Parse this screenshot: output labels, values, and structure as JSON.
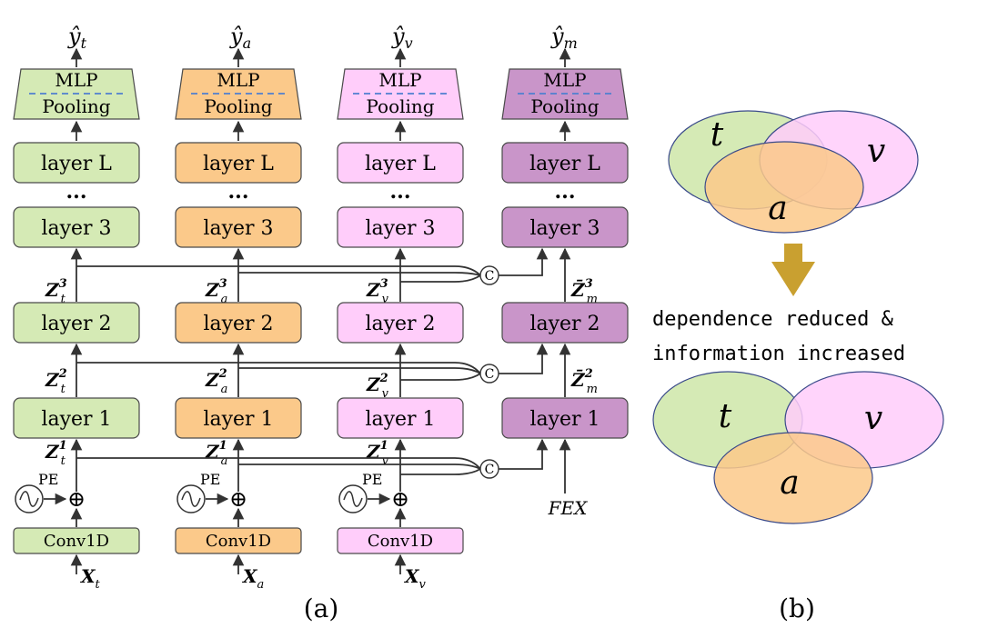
{
  "colors": {
    "text": "#d5eab5",
    "audio": "#fbc98a",
    "visual": "#ffcdfa",
    "multimodal": "#c995c9",
    "arrow_down": "#c9a030",
    "dashed": "#4f7fd0",
    "overlap_tv": "#cfb0b0",
    "overlap_tva": "#f07f80"
  },
  "panel_a": {
    "caption": "(a)",
    "columns": [
      {
        "id": "t",
        "output": "ŷ",
        "output_sub": "t",
        "mlp": "MLP",
        "pooling": "Pooling",
        "layers": [
          "layer L",
          "layer 3",
          "layer 2",
          "layer 1"
        ],
        "ellipsis": "...",
        "feat3": "Z",
        "feat3_sub": "t",
        "feat3_sup": "3",
        "feat2": "Z",
        "feat2_sub": "t",
        "feat2_sup": "2",
        "feat1": "Z",
        "feat1_sub": "t",
        "feat1_sup": "1",
        "pe": "PE",
        "plus": "⊕",
        "conv": "Conv1D",
        "input": "X",
        "input_sub": "t"
      },
      {
        "id": "a",
        "output": "ŷ",
        "output_sub": "a",
        "mlp": "MLP",
        "pooling": "Pooling",
        "layers": [
          "layer L",
          "layer 3",
          "layer 2",
          "layer 1"
        ],
        "ellipsis": "...",
        "feat3": "Z",
        "feat3_sub": "a",
        "feat3_sup": "3",
        "feat2": "Z",
        "feat2_sub": "a",
        "feat2_sup": "2",
        "feat1": "Z",
        "feat1_sub": "a",
        "feat1_sup": "1",
        "pe": "PE",
        "plus": "⊕",
        "conv": "Conv1D",
        "input": "X",
        "input_sub": "a"
      },
      {
        "id": "v",
        "output": "ŷ",
        "output_sub": "v",
        "mlp": "MLP",
        "pooling": "Pooling",
        "layers": [
          "layer L",
          "layer 3",
          "layer 2",
          "layer 1"
        ],
        "ellipsis": "...",
        "feat3": "Z",
        "feat3_sub": "v",
        "feat3_sup": "3",
        "feat2": "Z",
        "feat2_sub": "v",
        "feat2_sup": "2",
        "feat1": "Z",
        "feat1_sub": "v",
        "feat1_sup": "1",
        "pe": "PE",
        "plus": "⊕",
        "conv": "Conv1D",
        "input": "X",
        "input_sub": "v"
      },
      {
        "id": "m",
        "output": "ŷ",
        "output_sub": "m",
        "mlp": "MLP",
        "pooling": "Pooling",
        "layers": [
          "layer L",
          "layer 3",
          "layer 2",
          "layer 1"
        ],
        "ellipsis": "...",
        "feat3": "Z̄",
        "feat3_sub": "m",
        "feat3_sup": "3",
        "feat2": "Z̄",
        "feat2_sub": "m",
        "feat2_sup": "2",
        "input_fex": "FEX"
      }
    ],
    "concat_symbol": "C"
  },
  "panel_b": {
    "caption": "(b)",
    "transition_text_1": "dependence reduced &",
    "transition_text_2": "information increased",
    "top_labels": {
      "t": "t",
      "v": "v",
      "a": "a"
    },
    "bottom_labels": {
      "t": "t",
      "v": "v",
      "a": "a"
    }
  }
}
